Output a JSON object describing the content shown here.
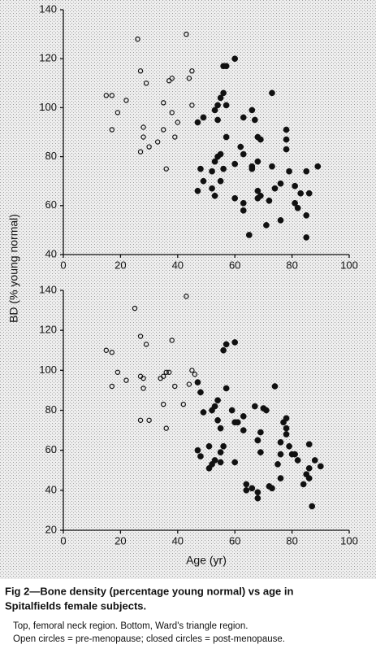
{
  "chart_data": [
    {
      "type": "scatter",
      "ylabel": "BD (% young normal)",
      "xlim": [
        0,
        100
      ],
      "ylim": [
        40,
        140
      ],
      "xticks": [
        0,
        20,
        40,
        60,
        80,
        100
      ],
      "yticks": [
        40,
        60,
        80,
        100,
        120,
        140
      ],
      "grid": false,
      "series": [
        {
          "marker": "open",
          "color": "#111111",
          "x": [
            15,
            17,
            19,
            17,
            22,
            26,
            27,
            29,
            28,
            27,
            30,
            28,
            33,
            35,
            35,
            36,
            37,
            38,
            39,
            40,
            43,
            44,
            45,
            45,
            38
          ],
          "values": [
            105,
            105,
            98,
            91,
            103,
            128,
            115,
            110,
            88,
            82,
            84,
            92,
            86,
            91,
            102,
            75,
            111,
            112,
            88,
            94,
            130,
            112,
            115,
            101,
            98
          ]
        },
        {
          "marker": "closed",
          "color": "#111111",
          "x": [
            47,
            48,
            49,
            47,
            49,
            52,
            52,
            53,
            54,
            54,
            55,
            56,
            57,
            56,
            57,
            60,
            54,
            55,
            53,
            53,
            56,
            55,
            57,
            60,
            62,
            63,
            63,
            63,
            60,
            63,
            67,
            66,
            68,
            69,
            66,
            66,
            68,
            68,
            69,
            65,
            72,
            71,
            73,
            73,
            74,
            76,
            76,
            78,
            78,
            78,
            79,
            81,
            81,
            83,
            85,
            82,
            85,
            85,
            86,
            89,
            68
          ],
          "values": [
            94,
            75,
            96,
            66,
            70,
            74,
            67,
            99,
            101,
            95,
            104,
            106,
            101,
            117,
            117,
            120,
            80,
            81,
            78,
            64,
            75,
            70,
            88,
            63,
            84,
            81,
            61,
            58,
            77,
            96,
            95,
            99,
            88,
            87,
            76,
            75,
            66,
            63,
            64,
            48,
            62,
            52,
            76,
            106,
            67,
            69,
            54,
            91,
            87,
            83,
            74,
            68,
            61,
            65,
            74,
            59,
            56,
            47,
            65,
            76,
            78
          ]
        }
      ]
    },
    {
      "type": "scatter",
      "xlabel": "Age (yr)",
      "xlim": [
        0,
        100
      ],
      "ylim": [
        20,
        140
      ],
      "xticks": [
        0,
        20,
        40,
        60,
        80,
        100
      ],
      "yticks": [
        20,
        40,
        60,
        80,
        100,
        120,
        140
      ],
      "grid": false,
      "series": [
        {
          "marker": "open",
          "color": "#111111",
          "x": [
            15,
            17,
            17,
            19,
            22,
            25,
            27,
            29,
            27,
            28,
            28,
            27,
            30,
            34,
            35,
            35,
            36,
            37,
            36,
            38,
            39,
            42,
            43,
            45,
            46,
            44
          ],
          "values": [
            110,
            109,
            92,
            99,
            95,
            131,
            117,
            113,
            97,
            96,
            91,
            75,
            75,
            96,
            83,
            97,
            99,
            99,
            71,
            115,
            92,
            83,
            137,
            100,
            98,
            93
          ]
        },
        {
          "marker": "closed",
          "color": "#111111",
          "x": [
            47,
            47,
            48,
            48,
            49,
            51,
            51,
            52,
            53,
            52,
            53,
            54,
            54,
            55,
            55,
            56,
            55,
            56,
            57,
            60,
            57,
            59,
            60,
            61,
            60,
            63,
            63,
            64,
            64,
            66,
            68,
            68,
            67,
            68,
            68,
            69,
            70,
            69,
            71,
            72,
            73,
            74,
            75,
            76,
            76,
            76,
            78,
            77,
            78,
            78,
            79,
            80,
            81,
            82,
            84,
            85,
            86,
            86,
            86,
            87,
            88,
            90
          ],
          "values": [
            94,
            60,
            57,
            89,
            79,
            62,
            51,
            53,
            55,
            80,
            82,
            85,
            75,
            59,
            71,
            62,
            54,
            110,
            113,
            114,
            91,
            80,
            74,
            74,
            54,
            77,
            70,
            43,
            40,
            41,
            39,
            36,
            82,
            65,
            65,
            69,
            81,
            59,
            80,
            42,
            41,
            92,
            53,
            46,
            58,
            64,
            71,
            74,
            76,
            68,
            62,
            58,
            58,
            55,
            43,
            48,
            51,
            63,
            46,
            32,
            55,
            52
          ]
        }
      ]
    }
  ],
  "caption": {
    "title": [
      "Fig 2—Bone density (percentage young normal) vs age in",
      "Spitalfields female subjects."
    ],
    "notes": [
      "Top, femoral neck region. Bottom, Ward's triangle region.",
      "Open circles = pre-menopause; closed circles = post-menopause."
    ]
  }
}
